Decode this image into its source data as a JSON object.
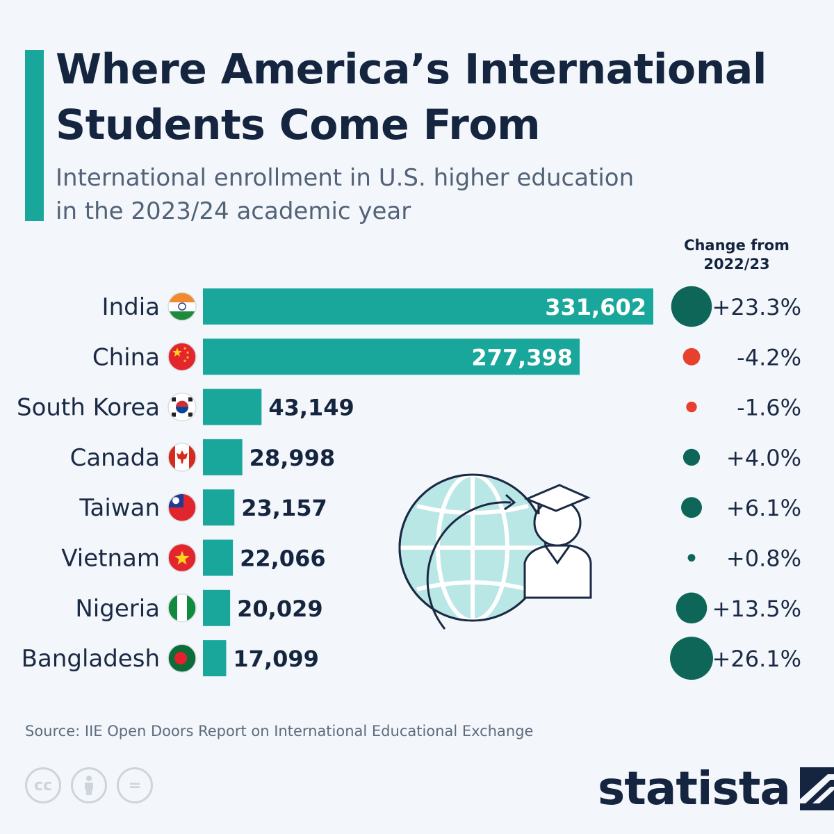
{
  "header": {
    "title_line1": "Where America’s International",
    "title_line2": "Students Come From",
    "subtitle_line1": "International enrollment in U.S. higher education",
    "subtitle_line2": "in the 2023/24 academic year"
  },
  "change_header": {
    "line1": "Change from",
    "line2": "2022/23"
  },
  "colors": {
    "bar": "#1aa79b",
    "positive": "#0e6659",
    "negative": "#e8402f",
    "title": "#15253f"
  },
  "chart_data": {
    "type": "bar",
    "orientation": "horizontal",
    "categories": [
      "India",
      "China",
      "South Korea",
      "Canada",
      "Taiwan",
      "Vietnam",
      "Nigeria",
      "Bangladesh"
    ],
    "values": [
      331602,
      277398,
      43149,
      28998,
      23157,
      22066,
      20029,
      17099
    ],
    "value_labels": [
      "331,602",
      "277,398",
      "43,149",
      "28,998",
      "23,157",
      "22,066",
      "20,029",
      "17,099"
    ],
    "change_pct": [
      23.3,
      -4.2,
      -1.6,
      4.0,
      6.1,
      0.8,
      13.5,
      26.1
    ],
    "change_labels": [
      "+23.3%",
      "-4.2%",
      "-1.6%",
      "+4.0%",
      "+6.1%",
      "+0.8%",
      "+13.5%",
      "+26.1%"
    ],
    "flags": [
      "india-flag-icon",
      "china-flag-icon",
      "south-korea-flag-icon",
      "canada-flag-icon",
      "taiwan-flag-icon",
      "vietnam-flag-icon",
      "nigeria-flag-icon",
      "bangladesh-flag-icon"
    ],
    "xlim": [
      0,
      331602
    ]
  },
  "footer": {
    "source": "Source: IIE Open Doors Report on International Educational Exchange",
    "cc_labels": [
      "cc",
      "",
      "="
    ],
    "brand": "statista"
  }
}
